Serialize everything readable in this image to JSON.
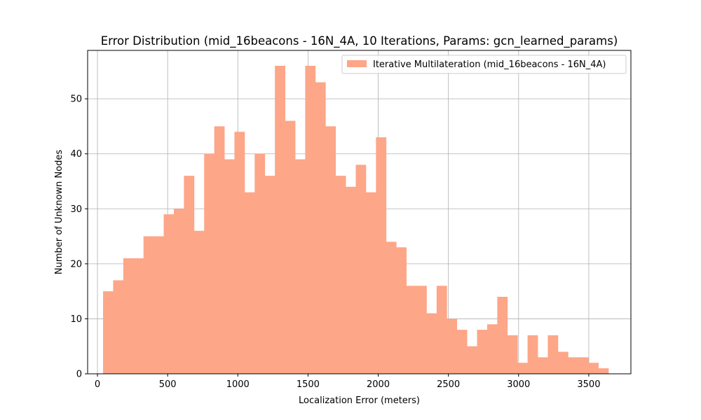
{
  "chart_data": {
    "type": "bar",
    "title": "Error Distribution (mid_16beacons - 16N_4A, 10 Iterations, Params: gcn_learned_params)",
    "xlabel": "Localization Error (meters)",
    "ylabel": "Number of Unknown Nodes",
    "xlim": [
      -70,
      3800
    ],
    "ylim": [
      0,
      58.8
    ],
    "xticks": [
      0,
      500,
      1000,
      1500,
      2000,
      2500,
      3000,
      3500
    ],
    "yticks": [
      0,
      10,
      20,
      30,
      40,
      50
    ],
    "grid": true,
    "legend_position": "upper right",
    "bin_start": 40,
    "bin_width": 72,
    "series": [
      {
        "name": "Iterative Multilateration (mid_16beacons - 16N_4A)",
        "color": "#fda688",
        "values": [
          15,
          17,
          21,
          21,
          25,
          25,
          29,
          30,
          36,
          26,
          40,
          45,
          39,
          44,
          33,
          40,
          36,
          56,
          46,
          39,
          56,
          53,
          45,
          36,
          34,
          38,
          33,
          43,
          24,
          23,
          16,
          16,
          11,
          16,
          10,
          8,
          5,
          8,
          9,
          14,
          7,
          2,
          7,
          3,
          7,
          4,
          3,
          3,
          2,
          1
        ]
      }
    ]
  }
}
